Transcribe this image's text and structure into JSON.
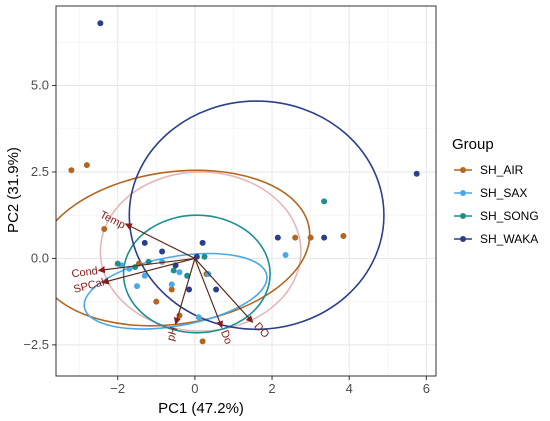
{
  "chart_data": {
    "type": "scatter",
    "subtype": "pca-biplot",
    "title": "",
    "xlabel": "PC1 (47.2%)",
    "ylabel": "PC2 (31.9%)",
    "xlim": [
      -3.6,
      6.25
    ],
    "ylim": [
      -3.4,
      7.3
    ],
    "xticks": [
      -2,
      0,
      2,
      4,
      6
    ],
    "yticks": [
      -2.5,
      0.0,
      2.5,
      5.0
    ],
    "xtick_labels": [
      "−2",
      "0",
      "2",
      "4",
      "6"
    ],
    "ytick_labels": [
      "−2.5",
      "0.0",
      "2.5",
      "5.0"
    ],
    "grid": true,
    "legend": {
      "title": "Group",
      "placement": "right",
      "entries": [
        "SH_AIR",
        "SH_SAX",
        "SH_SONG",
        "SH_WAKA"
      ]
    },
    "series": [
      {
        "name": "SH_AIR",
        "color": "#b5651d",
        "points": [
          [
            -3.2,
            2.55
          ],
          [
            -2.8,
            2.7
          ],
          [
            -2.35,
            0.85
          ],
          [
            -1.0,
            -1.25
          ],
          [
            -0.6,
            -0.9
          ],
          [
            -0.4,
            -1.65
          ],
          [
            0.2,
            -2.4
          ],
          [
            0.3,
            -0.45
          ],
          [
            -1.45,
            -0.15
          ],
          [
            2.6,
            0.6
          ],
          [
            3.0,
            0.6
          ],
          [
            3.85,
            0.65
          ]
        ],
        "ellipse": {
          "center": [
            -0.55,
            0.3
          ],
          "rx": 3.55,
          "ry": 2.2,
          "angle_deg": 8
        }
      },
      {
        "name": "SH_SAX",
        "color": "#4aa8e6",
        "points": [
          [
            -1.9,
            -0.2
          ],
          [
            -1.7,
            -0.3
          ],
          [
            -1.5,
            -0.8
          ],
          [
            -1.3,
            -0.5
          ],
          [
            -0.85,
            -0.1
          ],
          [
            -0.4,
            -0.4
          ],
          [
            0.35,
            -0.45
          ],
          [
            -0.6,
            -0.75
          ],
          [
            2.35,
            0.1
          ],
          [
            0.1,
            -1.7
          ]
        ],
        "ellipse": {
          "center": [
            -0.5,
            -0.95
          ],
          "rx": 2.4,
          "ry": 1.0,
          "angle_deg": 10
        }
      },
      {
        "name": "SH_SONG",
        "color": "#1d8f8f",
        "points": [
          [
            -2.0,
            -0.15
          ],
          [
            -1.55,
            -0.25
          ],
          [
            -1.2,
            -0.1
          ],
          [
            -0.55,
            -0.35
          ],
          [
            -0.2,
            -0.5
          ],
          [
            3.35,
            1.65
          ],
          [
            0.25,
            0.05
          ]
        ],
        "ellipse": {
          "center": [
            0.05,
            -0.45
          ],
          "rx": 1.9,
          "ry": 1.7,
          "angle_deg": 0
        }
      },
      {
        "name": "SH_WAKA",
        "color": "#2b3f8c",
        "points": [
          [
            -2.45,
            6.8
          ],
          [
            5.75,
            2.45
          ],
          [
            -1.3,
            0.45
          ],
          [
            -0.5,
            -0.2
          ],
          [
            -0.85,
            0.2
          ],
          [
            0.2,
            0.45
          ],
          [
            0.05,
            0.05
          ],
          [
            -0.15,
            -0.9
          ],
          [
            0.55,
            -0.9
          ],
          [
            2.15,
            0.6
          ],
          [
            3.35,
            0.6
          ]
        ],
        "ellipse": {
          "center": [
            1.6,
            1.25
          ],
          "rx": 3.3,
          "ry": 3.3,
          "angle_deg": 0
        }
      }
    ],
    "extra_ellipses": [
      {
        "color": "#e6b8b8",
        "center": [
          0.15,
          0.2
        ],
        "rx": 2.6,
        "ry": 2.3,
        "angle_deg": 0
      }
    ],
    "loadings": [
      {
        "label": "Temp",
        "end": [
          -1.8,
          1.0
        ]
      },
      {
        "label": "Cond",
        "end": [
          -2.5,
          -0.35
        ]
      },
      {
        "label": "SPCal",
        "end": [
          -2.4,
          -0.7
        ]
      },
      {
        "label": "pH",
        "end": [
          -0.5,
          -1.9
        ]
      },
      {
        "label": "Do",
        "end": [
          0.7,
          -2.0
        ]
      },
      {
        "label": "DO",
        "end": [
          1.5,
          -1.85
        ]
      }
    ],
    "loading_color": "#8b1a1a",
    "arrow_origin": [
      0,
      0
    ]
  }
}
